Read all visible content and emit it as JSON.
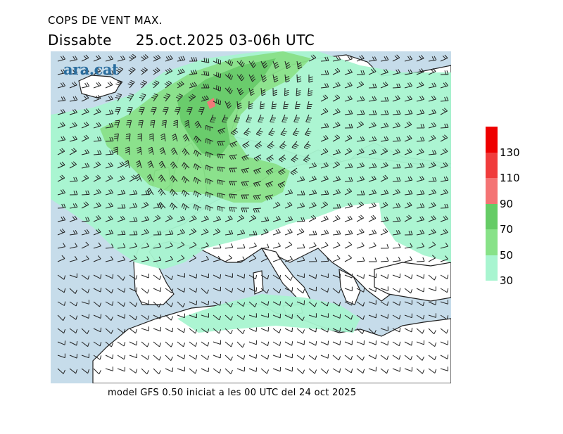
{
  "header": {
    "title": "COPS DE VENT MAX.",
    "day": "Dissabte",
    "valid_time": "25.oct.2025 03-06h UTC"
  },
  "logo": {
    "text": "ara.cat",
    "color": "#2a6d9e"
  },
  "footer": {
    "model_info": "model GFS 0.50 iniciat a les 00 UTC del 24 oct 2025"
  },
  "legend": {
    "bins": [
      {
        "from": 30,
        "to": 50,
        "color": "#a8f5d0"
      },
      {
        "from": 50,
        "to": 70,
        "color": "#88e288"
      },
      {
        "from": 70,
        "to": 90,
        "color": "#66cc66"
      },
      {
        "from": 90,
        "to": 110,
        "color": "#f47474"
      },
      {
        "from": 110,
        "to": 130,
        "color": "#f03c3c"
      },
      {
        "from": 130,
        "to": 150,
        "color": "#ee0000"
      }
    ],
    "tick_labels": [
      "30",
      "50",
      "70",
      "90",
      "110",
      "130"
    ]
  },
  "map_colors": {
    "sea": "#c6dcea",
    "land_calm": "#ffffff",
    "gust_30_50": "#a8f5d0",
    "gust_50_70": "#88e288",
    "gust_70_90": "#66cc66",
    "gust_90_110": "#f47474",
    "coastline": "#222222",
    "barb": "#222222"
  }
}
